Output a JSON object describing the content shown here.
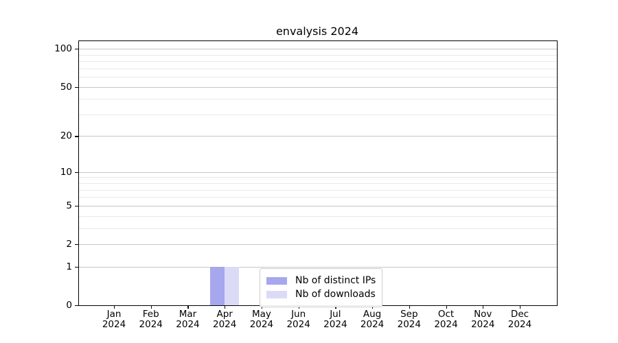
{
  "figure": {
    "title": "envalysis 2024",
    "background": "#ffffff"
  },
  "chart_data": {
    "type": "bar",
    "title": "envalysis 2024",
    "x_months": [
      "Jan",
      "Feb",
      "Mar",
      "Apr",
      "May",
      "Jun",
      "Jul",
      "Aug",
      "Sep",
      "Oct",
      "Nov",
      "Dec"
    ],
    "x_year": "2024",
    "series": [
      {
        "name": "Nb of distinct IPs",
        "color": "#a7a7ee",
        "values": [
          0,
          0,
          0,
          1,
          0,
          0,
          0,
          0,
          0,
          0,
          0,
          0
        ]
      },
      {
        "name": "Nb of downloads",
        "color": "#dbdbf8",
        "values": [
          0,
          0,
          0,
          1,
          0,
          0,
          0,
          0,
          0,
          0,
          0,
          0
        ]
      }
    ],
    "y_ticks": [
      0,
      1,
      2,
      5,
      10,
      20,
      50,
      100
    ],
    "y_minor_gridlines": [
      3,
      4,
      6,
      7,
      8,
      9,
      30,
      40,
      60,
      70,
      80,
      90
    ],
    "y_scale": "log1p",
    "ylim": [
      0,
      115
    ],
    "grid": "horizontal-major-and-minor",
    "legend": {
      "position": "inside-bottom-center",
      "border_color": "#cccccc"
    }
  },
  "colors": {
    "axis": "#000000",
    "major_grid": "#c6c6c6",
    "minor_grid": "#e9e9e9",
    "text": "#000000"
  }
}
